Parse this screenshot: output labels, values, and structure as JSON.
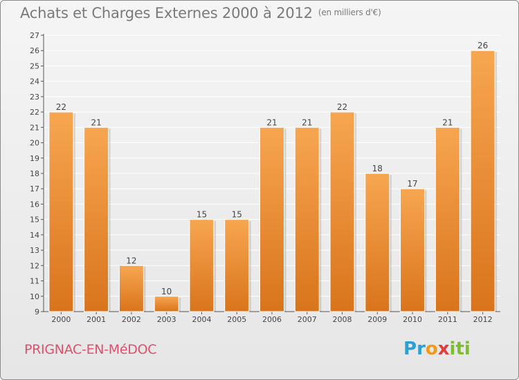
{
  "title": "Achats et Charges Externes 2000 à 2012",
  "unit_note": "(en milliers d'€)",
  "commune": "PRIGNAC-EN-MéDOC",
  "logo": {
    "letters": [
      "P",
      "r",
      "o",
      "x",
      "i",
      "t",
      "i"
    ],
    "colors": [
      "#2a9fd8",
      "#2a9fd8",
      "#f39a1e",
      "#e23b3b",
      "#7cbf2a",
      "#7cbf2a",
      "#7cbf2a"
    ]
  },
  "colors": {
    "bar_top": "#f7a650",
    "bar_bottom": "#d9741c",
    "grid": "#ffffff",
    "axis_text": "#444444",
    "title": "#7a7a7a",
    "commune": "#e0506a"
  },
  "chart_data": {
    "type": "bar",
    "categories": [
      "2000",
      "2001",
      "2002",
      "2003",
      "2004",
      "2005",
      "2006",
      "2007",
      "2008",
      "2009",
      "2010",
      "2011",
      "2012"
    ],
    "values": [
      22,
      21,
      12,
      10,
      15,
      15,
      21,
      21,
      22,
      18,
      17,
      21,
      26
    ],
    "data_labels": [
      "22",
      "21",
      "12",
      "10",
      "15",
      "15",
      "21",
      "21",
      "22",
      "18",
      "17",
      "21",
      "26"
    ],
    "xlabel": "",
    "ylabel": "",
    "ylim": [
      9,
      27
    ],
    "yticks": [
      9,
      10,
      11,
      12,
      13,
      14,
      15,
      16,
      17,
      18,
      19,
      20,
      21,
      22,
      23,
      24,
      25,
      26,
      27
    ],
    "grid": true,
    "legend": "none"
  }
}
